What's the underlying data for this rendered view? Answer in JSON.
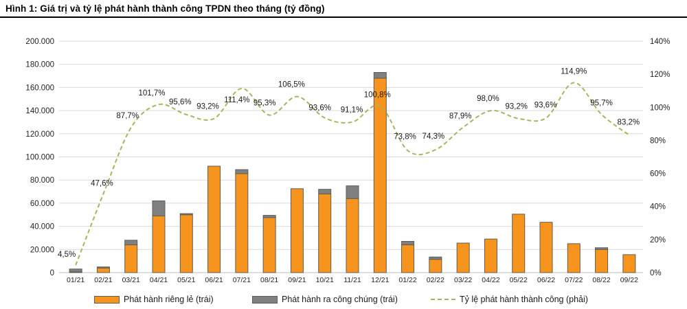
{
  "figure": {
    "title": "Hình 1: Giá trị và tỷ lệ phát hành thành công TPDN theo tháng (tỷ đồng)"
  },
  "colors": {
    "private_bar": "#f7941e",
    "public_bar": "#808080",
    "bar_border": "#5c5c54",
    "success_line": "#a2b75e",
    "gridline": "#d9d9d9",
    "baseline": "#bfbfbf",
    "text": "#1f1f1f"
  },
  "chart_data": {
    "type": "bar",
    "subtype": "stacked bars + smoothed dashed line on secondary axis",
    "categories": [
      "01/21",
      "02/21",
      "03/21",
      "04/21",
      "05/21",
      "06/21",
      "07/21",
      "08/21",
      "09/21",
      "10/21",
      "11/21",
      "12/21",
      "01/22",
      "02/22",
      "03/22",
      "04/22",
      "05/22",
      "06/22",
      "07/22",
      "08/22",
      "09/22"
    ],
    "series": [
      {
        "name": "Phát hành riêng lẻ (trái)",
        "kind": "bar",
        "axis": "left",
        "color": "#f7941e",
        "values": [
          600,
          4000,
          24000,
          49000,
          50000,
          92000,
          85500,
          47500,
          72500,
          68000,
          64000,
          168000,
          24000,
          11500,
          25500,
          29000,
          50500,
          43500,
          25000,
          20000,
          15500
        ]
      },
      {
        "name": "Phát hành ra công chúng (trái)",
        "kind": "bar",
        "axis": "left",
        "color": "#808080",
        "values": [
          2500,
          900,
          4000,
          13000,
          1000,
          0,
          3500,
          2000,
          0,
          4000,
          11000,
          5000,
          3000,
          2000,
          0,
          0,
          0,
          0,
          0,
          1500,
          0
        ]
      },
      {
        "name": "Tỷ lệ phát hành thành công (phải)",
        "kind": "line",
        "axis": "right",
        "color": "#a2b75e",
        "values": [
          4.5,
          47.6,
          87.7,
          101.7,
          95.6,
          93.2,
          111.4,
          95.3,
          106.5,
          93.6,
          91.1,
          100.8,
          73.8,
          74.3,
          87.9,
          98.0,
          93.2,
          93.6,
          114.9,
          95.7,
          83.2
        ],
        "point_labels": [
          "4,5%",
          "47,6%",
          "87,7%",
          "101,7%",
          "95,6%",
          "93,2%",
          "111,4%",
          "95,3%",
          "106,5%",
          "93,6%",
          "91,1%",
          "100,8%",
          "73,8%",
          "74,3%",
          "87,9%",
          "98,0%",
          "93,2%",
          "93,6%",
          "114,9%",
          "95,7%",
          "83,2%"
        ]
      }
    ],
    "stacked": true,
    "grid": true,
    "legend_position": "bottom",
    "left_axis": {
      "min": 0,
      "max": 200000,
      "step": 20000,
      "tick_labels": [
        "0",
        "20.000",
        "40.000",
        "60.000",
        "80.000",
        "100.000",
        "120.000",
        "140.000",
        "160.000",
        "180.000",
        "200.000"
      ]
    },
    "right_axis": {
      "min": 0,
      "max": 140,
      "step": 20,
      "tick_labels": [
        "0%",
        "20%",
        "40%",
        "60%",
        "80%",
        "100%",
        "120%",
        "140%"
      ]
    }
  }
}
